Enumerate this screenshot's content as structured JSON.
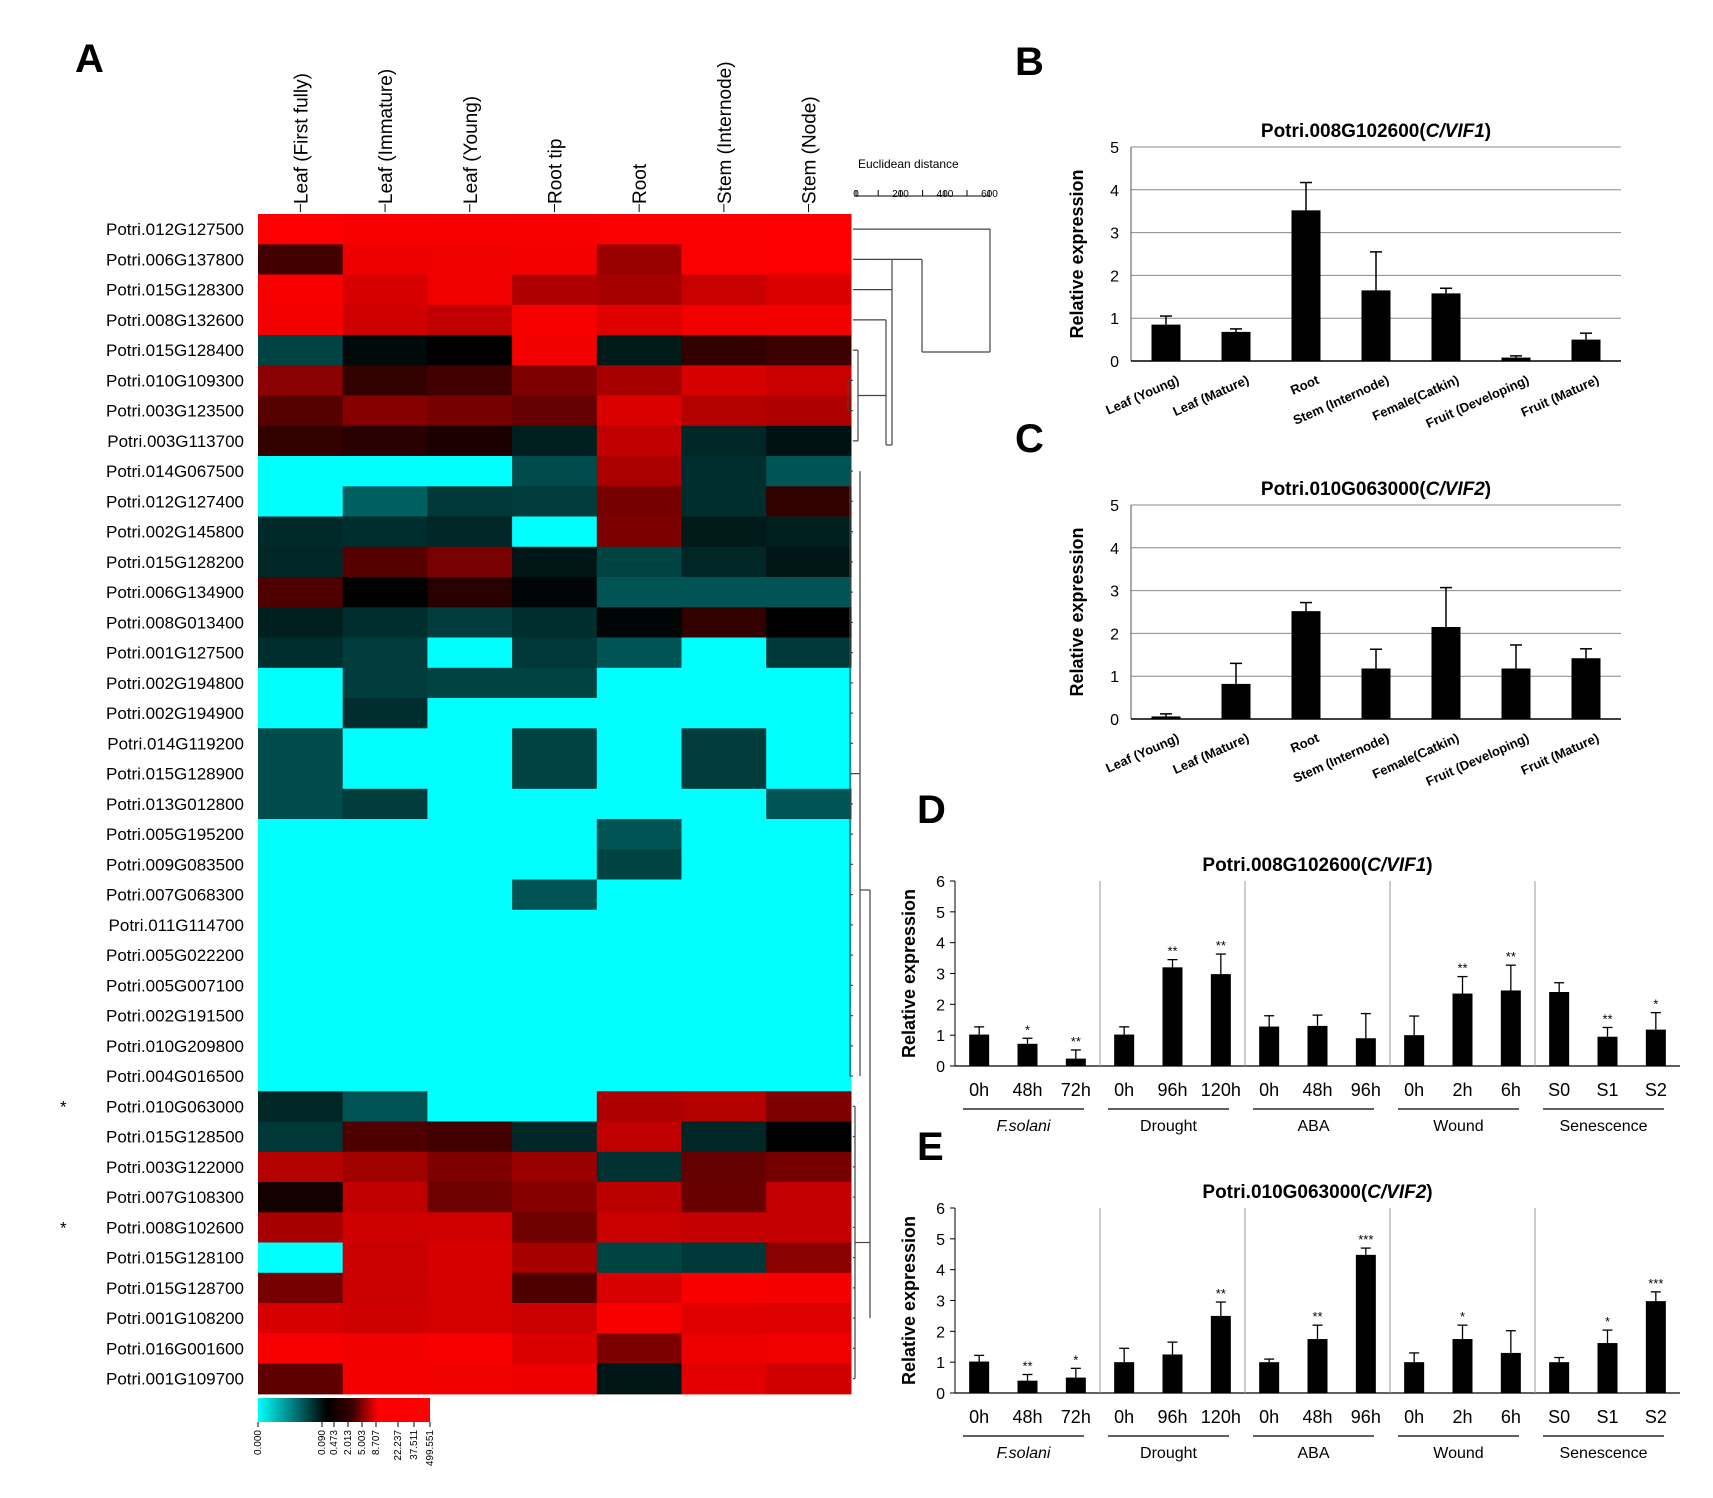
{
  "panels": {
    "A": "A",
    "B": "B",
    "C": "C",
    "D": "D",
    "E": "E"
  },
  "chart_data": [
    {
      "type": "heatmap",
      "panel": "A",
      "columns": [
        "Leaf (First fully)",
        "Leaf (Immature)",
        "Leaf (Young)",
        "Root tip",
        "Root",
        "Stem (Internode)",
        "Stem (Node)"
      ],
      "rows": [
        "Potri.012G127500",
        "Potri.006G137800",
        "Potri.015G128300",
        "Potri.008G132600",
        "Potri.015G128400",
        "Potri.010G109300",
        "Potri.003G123500",
        "Potri.003G113700",
        "Potri.014G067500",
        "Potri.012G127400",
        "Potri.002G145800",
        "Potri.015G128200",
        "Potri.006G134900",
        "Potri.008G013400",
        "Potri.001G127500",
        "Potri.002G194800",
        "Potri.002G194900",
        "Potri.014G119200",
        "Potri.015G128900",
        "Potri.013G012800",
        "Potri.005G195200",
        "Potri.009G083500",
        "Potri.007G068300",
        "Potri.011G114700",
        "Potri.005G022200",
        "Potri.005G007100",
        "Potri.002G191500",
        "Potri.010G209800",
        "Potri.004G016500",
        "Potri.010G063000",
        "Potri.015G128500",
        "Potri.003G122000",
        "Potri.007G108300",
        "Potri.008G102600",
        "Potri.015G128100",
        "Potri.015G128700",
        "Potri.001G108200",
        "Potri.016G001600",
        "Potri.001G109700"
      ],
      "marked_rows": [
        29,
        33
      ],
      "marker": "*",
      "values": [
        [
          499.6,
          400,
          380,
          420,
          440,
          450,
          460
        ],
        [
          4,
          300,
          320,
          360,
          30,
          450,
          460
        ],
        [
          400,
          150,
          330,
          50,
          40,
          100,
          170
        ],
        [
          350,
          120,
          80,
          380,
          200,
          340,
          350
        ],
        [
          0.3,
          1.2,
          1.5,
          350,
          0.8,
          3,
          3.5
        ],
        [
          20,
          3,
          4,
          15,
          40,
          150,
          100
        ],
        [
          6,
          18,
          12,
          8,
          170,
          60,
          50
        ],
        [
          3,
          2.5,
          2,
          0.7,
          80,
          0.6,
          1
        ],
        [
          0,
          0,
          0,
          0.25,
          45,
          0.5,
          0.2
        ],
        [
          0,
          0.15,
          0.4,
          0.35,
          12,
          0.5,
          3
        ],
        [
          0.55,
          0.5,
          0.6,
          0,
          14,
          0.8,
          0.7
        ],
        [
          0.6,
          6,
          13,
          0.9,
          0.3,
          0.6,
          0.9
        ],
        [
          5,
          1.5,
          2.5,
          1.3,
          0.2,
          0.2,
          0.2
        ],
        [
          0.7,
          0.5,
          0.35,
          0.5,
          1.3,
          3,
          1.5
        ],
        [
          0.5,
          0.35,
          0,
          0.4,
          0.2,
          0,
          0.4
        ],
        [
          0,
          0.35,
          0.3,
          0.3,
          0,
          0,
          0
        ],
        [
          0,
          0.5,
          0,
          0,
          0,
          0,
          0
        ],
        [
          0.25,
          0,
          0,
          0.3,
          0,
          0.35,
          0
        ],
        [
          0.25,
          0,
          0,
          0.3,
          0,
          0.35,
          0
        ],
        [
          0.25,
          0.35,
          0,
          0,
          0,
          0,
          0.2
        ],
        [
          0,
          0,
          0,
          0,
          0.2,
          0,
          0
        ],
        [
          0,
          0,
          0,
          0,
          0.3,
          0,
          0
        ],
        [
          0,
          0,
          0,
          0.2,
          0,
          0,
          0
        ],
        [
          0,
          0,
          0,
          0,
          0,
          0,
          0
        ],
        [
          0,
          0,
          0,
          0,
          0,
          0,
          0
        ],
        [
          0,
          0,
          0,
          0,
          0,
          0,
          0
        ],
        [
          0,
          0,
          0,
          0,
          0,
          0,
          0
        ],
        [
          0,
          0,
          0,
          0,
          0,
          0,
          0
        ],
        [
          0,
          0,
          0,
          0,
          0,
          0,
          0
        ],
        [
          0.6,
          0.2,
          0,
          0,
          50,
          60,
          15
        ],
        [
          0.4,
          5,
          4,
          0.6,
          80,
          0.6,
          1.5
        ],
        [
          60,
          35,
          15,
          30,
          0.45,
          8,
          12
        ],
        [
          1.8,
          80,
          10,
          18,
          70,
          9,
          90
        ],
        [
          40,
          120,
          130,
          10,
          100,
          90,
          90
        ],
        [
          0,
          100,
          150,
          40,
          0.3,
          0.4,
          20
        ],
        [
          12,
          110,
          140,
          5,
          160,
          400,
          370
        ],
        [
          150,
          120,
          140,
          110,
          380,
          200,
          180
        ],
        [
          380,
          350,
          400,
          170,
          14,
          280,
          320
        ],
        [
          7,
          360,
          330,
          300,
          0.9,
          220,
          130
        ]
      ],
      "color_scale": {
        "stops": [
          "#00ffff",
          "#000000",
          "#ff0000"
        ],
        "tick_labels": [
          "0.000",
          "0.090",
          "0.473",
          "2.013",
          "5.003",
          "8.707",
          "22.237",
          "37.511",
          "499.551"
        ]
      },
      "dendrogram_title": "Euclidean distance",
      "dendrogram_ticks": [
        "0",
        "200",
        "400",
        "600"
      ]
    },
    {
      "type": "bar",
      "panel": "B",
      "title_prefix": "Potri.008G102600(",
      "title_gene": "C/VIF1",
      "title_suffix": ")",
      "categories": [
        "Leaf (Young)",
        "Leaf (Mature)",
        "Root",
        "Stem (Internode)",
        "Female(Catkin)",
        "Fruit (Developing)",
        "Fruit (Mature)"
      ],
      "values": [
        0.85,
        0.68,
        3.52,
        1.65,
        1.58,
        0.08,
        0.5
      ],
      "errors": [
        0.2,
        0.07,
        0.65,
        0.9,
        0.12,
        0.04,
        0.15
      ],
      "ylabel": "Relative expression",
      "ylim": [
        0,
        5
      ],
      "yticks": [
        "0",
        "1",
        "2",
        "3",
        "4",
        "5"
      ],
      "grid": true
    },
    {
      "type": "bar",
      "panel": "C",
      "title_prefix": "Potri.010G063000(",
      "title_gene": "C/VIF2",
      "title_suffix": ")",
      "categories": [
        "Leaf (Young)",
        "Leaf (Mature)",
        "Root",
        "Stem (Internode)",
        "Female(Catkin)",
        "Fruit (Developing)",
        "Fruit (Mature)"
      ],
      "values": [
        0.06,
        0.82,
        2.52,
        1.18,
        2.15,
        1.18,
        1.42
      ],
      "errors": [
        0.06,
        0.48,
        0.2,
        0.45,
        0.92,
        0.55,
        0.22
      ],
      "ylabel": "Relative expression",
      "ylim": [
        0,
        5
      ],
      "yticks": [
        "0",
        "1",
        "2",
        "3",
        "4",
        "5"
      ],
      "grid": true
    },
    {
      "type": "bar",
      "panel": "D",
      "title_prefix": "Potri.008G102600(",
      "title_gene": "C/VIF1",
      "title_suffix": ")",
      "ylabel": "Relative expression",
      "ylim": [
        0,
        6
      ],
      "yticks": [
        "0",
        "1",
        "2",
        "3",
        "4",
        "5",
        "6"
      ],
      "groups": [
        {
          "name": "F.solani",
          "italic": true,
          "categories": [
            "0h",
            "48h",
            "72h"
          ],
          "values": [
            1.02,
            0.72,
            0.24
          ],
          "errors": [
            0.25,
            0.18,
            0.28
          ],
          "sig": [
            "",
            "*",
            "**"
          ]
        },
        {
          "name": "Drought",
          "italic": false,
          "categories": [
            "0h",
            "96h",
            "120h"
          ],
          "values": [
            1.02,
            3.2,
            2.98
          ],
          "errors": [
            0.25,
            0.25,
            0.65
          ],
          "sig": [
            "",
            "**",
            "**"
          ]
        },
        {
          "name": "ABA",
          "italic": false,
          "categories": [
            "0h",
            "48h",
            "96h"
          ],
          "values": [
            1.28,
            1.3,
            0.9
          ],
          "errors": [
            0.35,
            0.35,
            0.8
          ],
          "sig": [
            "",
            "",
            ""
          ]
        },
        {
          "name": "Wound",
          "italic": false,
          "categories": [
            "0h",
            "2h",
            "6h"
          ],
          "values": [
            1.0,
            2.35,
            2.45
          ],
          "errors": [
            0.62,
            0.55,
            0.82
          ],
          "sig": [
            "",
            "**",
            "**"
          ]
        },
        {
          "name": "Senescence",
          "italic": false,
          "categories": [
            "S0",
            "S1",
            "S2"
          ],
          "values": [
            2.4,
            0.95,
            1.18
          ],
          "errors": [
            0.3,
            0.3,
            0.55
          ],
          "sig": [
            "",
            "**",
            "*"
          ]
        }
      ]
    },
    {
      "type": "bar",
      "panel": "E",
      "title_prefix": "Potri.010G063000(",
      "title_gene": "C/VIF2",
      "title_suffix": ")",
      "ylabel": "Relative expression",
      "ylim": [
        0,
        6
      ],
      "yticks": [
        "0",
        "1",
        "2",
        "3",
        "4",
        "5",
        "6"
      ],
      "groups": [
        {
          "name": "F.solani",
          "italic": true,
          "categories": [
            "0h",
            "48h",
            "72h"
          ],
          "values": [
            1.02,
            0.4,
            0.5
          ],
          "errors": [
            0.2,
            0.2,
            0.3
          ],
          "sig": [
            "",
            "**",
            "*"
          ]
        },
        {
          "name": "Drought",
          "italic": false,
          "categories": [
            "0h",
            "96h",
            "120h"
          ],
          "values": [
            1.0,
            1.25,
            2.5
          ],
          "errors": [
            0.45,
            0.4,
            0.45
          ],
          "sig": [
            "",
            "",
            "**"
          ]
        },
        {
          "name": "ABA",
          "italic": false,
          "categories": [
            "0h",
            "48h",
            "96h"
          ],
          "values": [
            1.0,
            1.75,
            4.48
          ],
          "errors": [
            0.1,
            0.45,
            0.22
          ],
          "sig": [
            "",
            "**",
            "***"
          ]
        },
        {
          "name": "Wound",
          "italic": false,
          "categories": [
            "0h",
            "2h",
            "6h"
          ],
          "values": [
            1.0,
            1.75,
            1.3
          ],
          "errors": [
            0.3,
            0.45,
            0.72
          ],
          "sig": [
            "",
            "*",
            ""
          ]
        },
        {
          "name": "Senescence",
          "italic": false,
          "categories": [
            "S0",
            "S1",
            "S2"
          ],
          "values": [
            1.0,
            1.62,
            2.98
          ],
          "errors": [
            0.15,
            0.42,
            0.3
          ],
          "sig": [
            "",
            "*",
            "***"
          ]
        }
      ]
    }
  ]
}
